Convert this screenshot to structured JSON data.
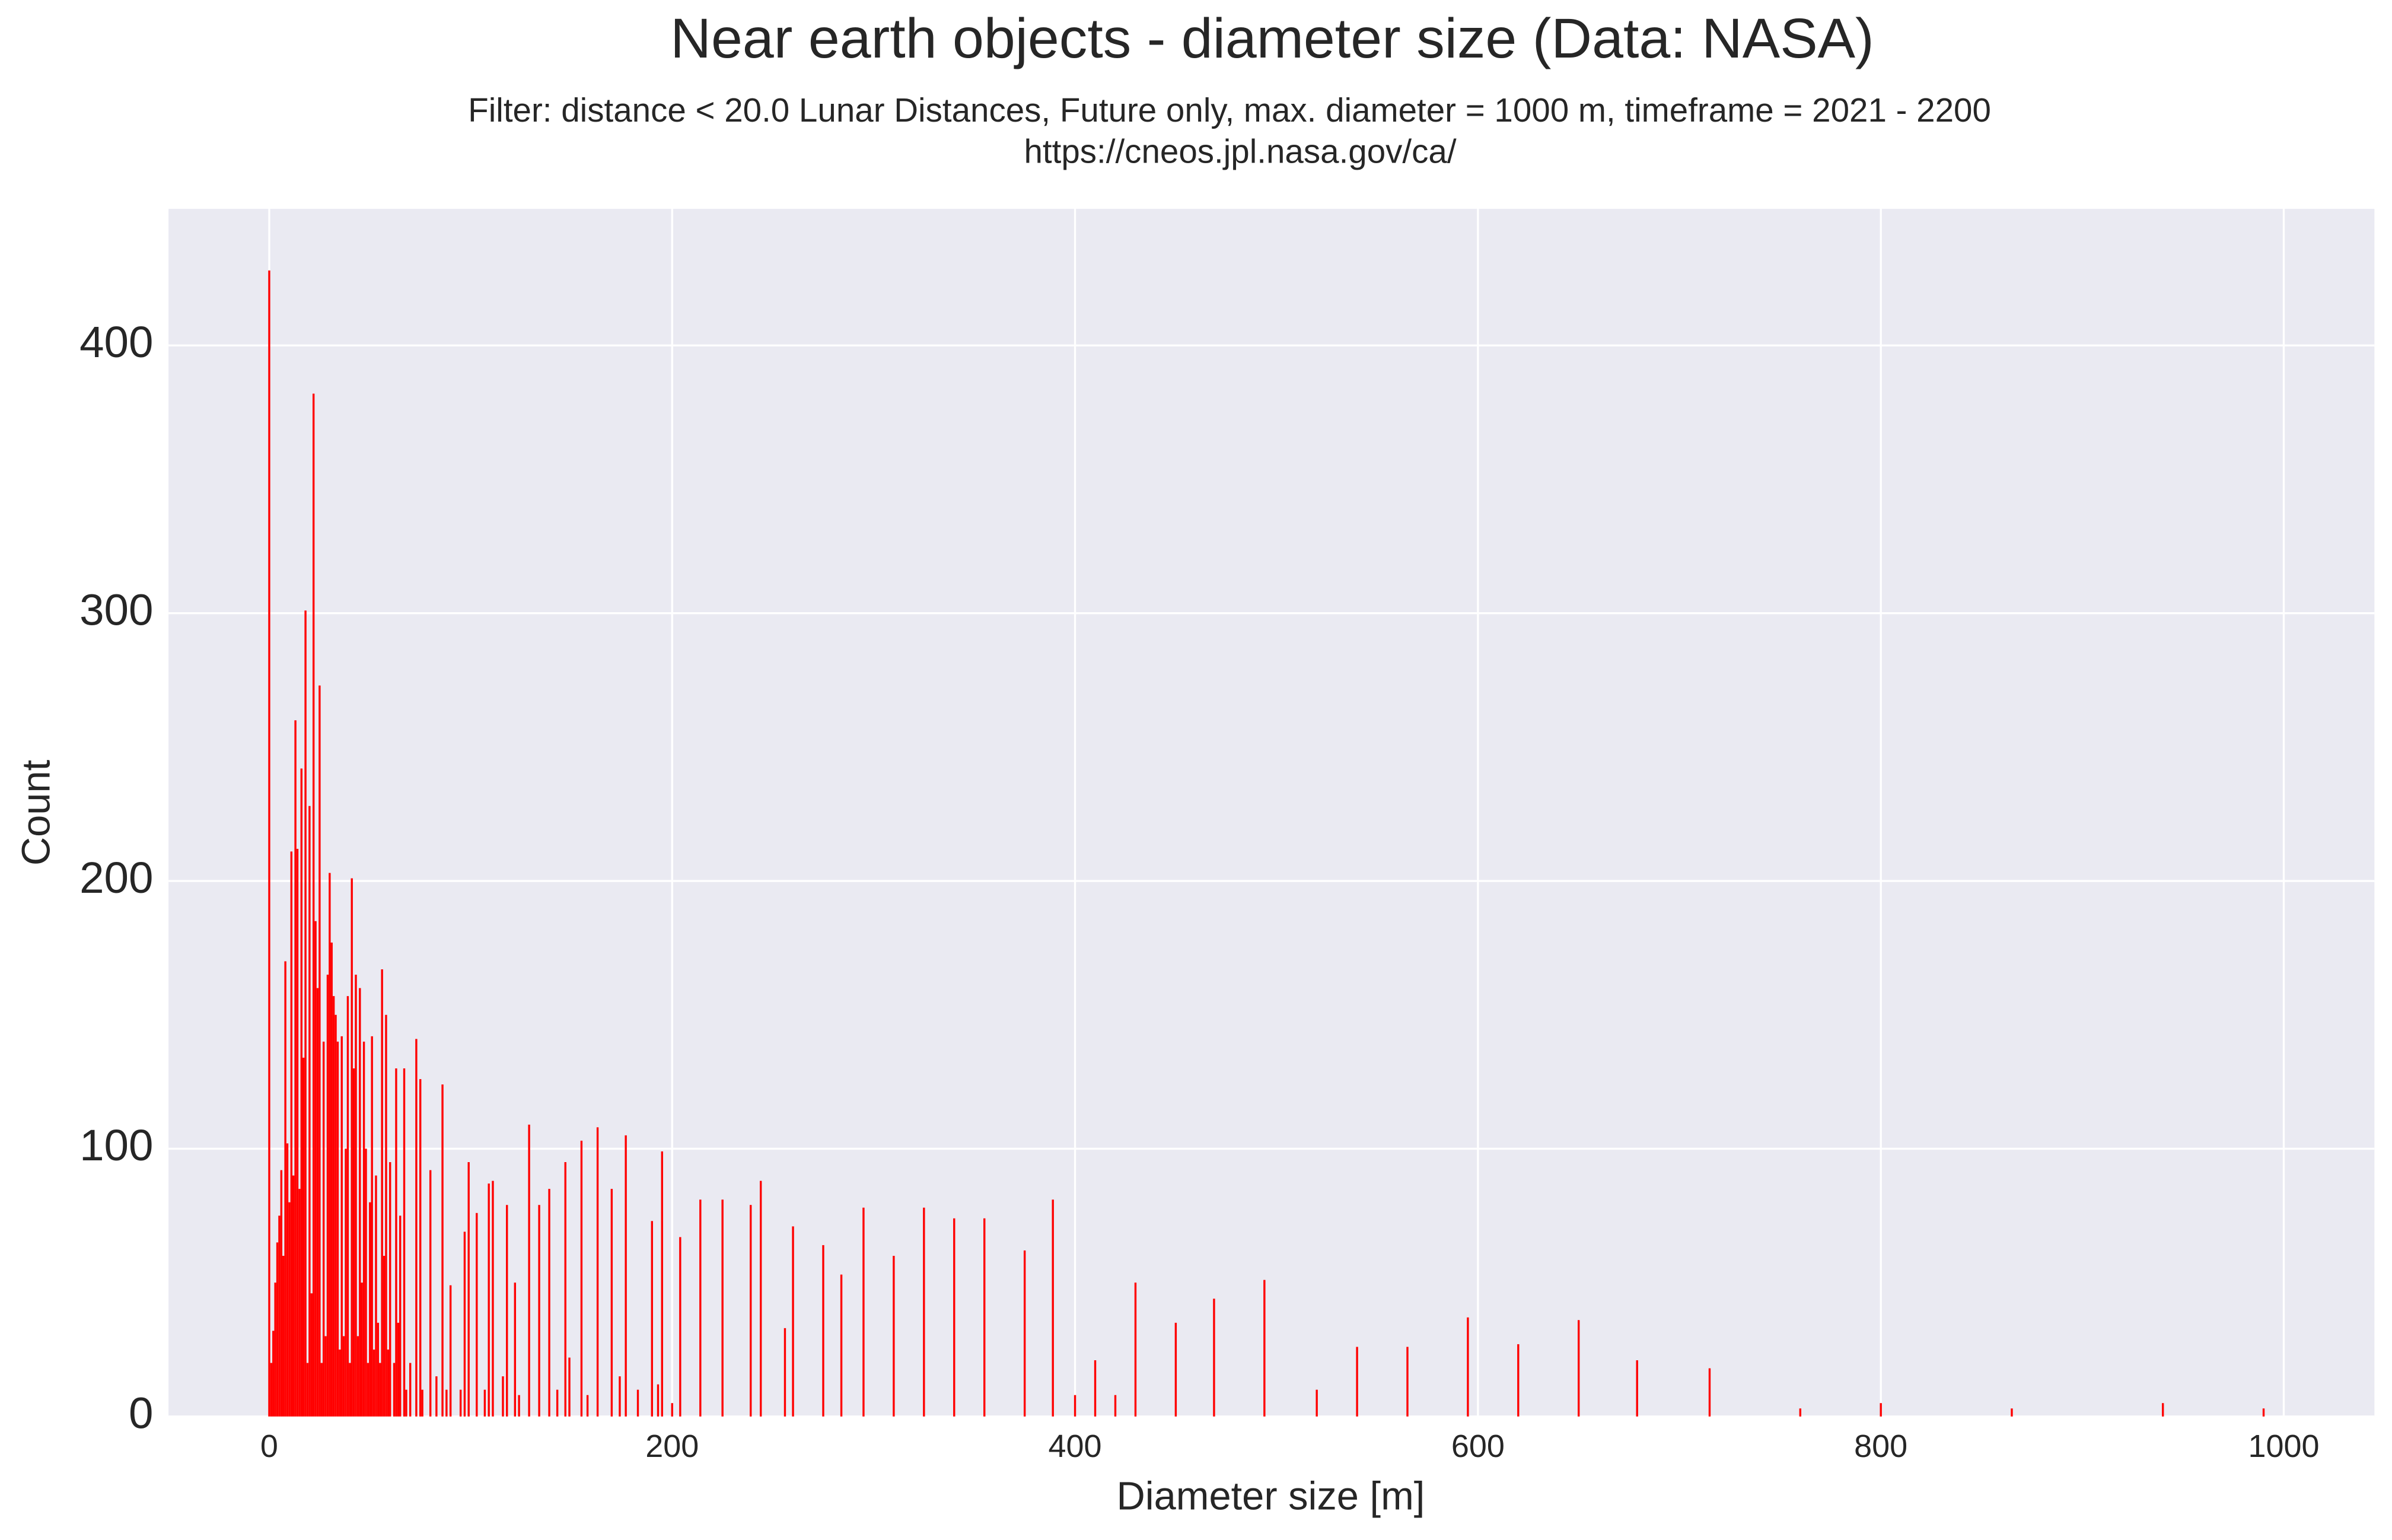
{
  "chart_data": {
    "type": "bar",
    "title": "Near earth objects - diameter size (Data: NASA)",
    "subtitle": "Filter: distance < 20.0 Lunar Distances, Future only, max. diameter = 1000 m, timeframe = 2021 - 2200",
    "source": "https://cneos.jpl.nasa.gov/ca/",
    "x_label": "Diameter size [m]",
    "y_label": "Count",
    "color": "#ff0000",
    "grid": true,
    "xlim": [
      -50,
      1045
    ],
    "ylim": [
      0,
      451
    ],
    "xticks": [
      0,
      200,
      400,
      600,
      800,
      1000
    ],
    "yticks": [
      0,
      100,
      200,
      300,
      400
    ],
    "x": [
      0,
      1,
      2,
      3,
      4,
      5,
      6,
      7,
      8,
      9,
      10,
      11,
      12,
      13,
      14,
      15,
      16,
      17,
      18,
      19,
      20,
      21,
      22,
      23,
      24,
      25,
      26,
      27,
      28,
      29,
      30,
      31,
      32,
      33,
      34,
      35,
      36,
      37,
      38,
      39,
      40,
      41,
      42,
      43,
      44,
      45,
      46,
      47,
      48,
      49,
      50,
      51,
      52,
      53,
      54,
      55,
      56,
      57,
      58,
      59,
      60,
      62,
      63,
      64,
      65,
      67,
      68,
      70,
      73,
      75,
      76,
      80,
      83,
      86,
      88,
      90,
      95,
      97,
      99,
      103,
      107,
      109,
      111,
      116,
      118,
      122,
      124,
      129,
      134,
      139,
      143,
      147,
      149,
      155,
      158,
      163,
      170,
      174,
      177,
      183,
      190,
      193,
      195,
      200,
      204,
      214,
      225,
      239,
      244,
      256,
      260,
      275,
      284,
      295,
      310,
      325,
      340,
      355,
      375,
      389,
      400,
      410,
      420,
      430,
      450,
      469,
      494,
      520,
      540,
      565,
      595,
      620,
      650,
      679,
      715,
      760,
      800,
      865,
      940,
      990
    ],
    "values": [
      428,
      20,
      32,
      50,
      65,
      75,
      92,
      60,
      170,
      102,
      80,
      211,
      90,
      260,
      212,
      85,
      242,
      134,
      301,
      20,
      228,
      46,
      382,
      185,
      160,
      273,
      20,
      140,
      30,
      165,
      203,
      177,
      157,
      150,
      140,
      25,
      142,
      30,
      100,
      157,
      20,
      201,
      130,
      165,
      30,
      160,
      50,
      140,
      100,
      20,
      80,
      142,
      25,
      90,
      35,
      20,
      167,
      60,
      150,
      25,
      95,
      20,
      130,
      35,
      75,
      130,
      10,
      20,
      141,
      126,
      10,
      92,
      15,
      124,
      10,
      49,
      10,
      69,
      95,
      76,
      10,
      87,
      88,
      15,
      79,
      50,
      8,
      109,
      79,
      85,
      10,
      95,
      22,
      103,
      8,
      108,
      85,
      15,
      105,
      10,
      73,
      12,
      99,
      5,
      67,
      81,
      81,
      79,
      88,
      33,
      71,
      64,
      53,
      78,
      60,
      78,
      74,
      74,
      62,
      81,
      8,
      21,
      8,
      50,
      35,
      44,
      51,
      10,
      26,
      26,
      37,
      27,
      36,
      21,
      18,
      3,
      5,
      3,
      5,
      3
    ]
  }
}
